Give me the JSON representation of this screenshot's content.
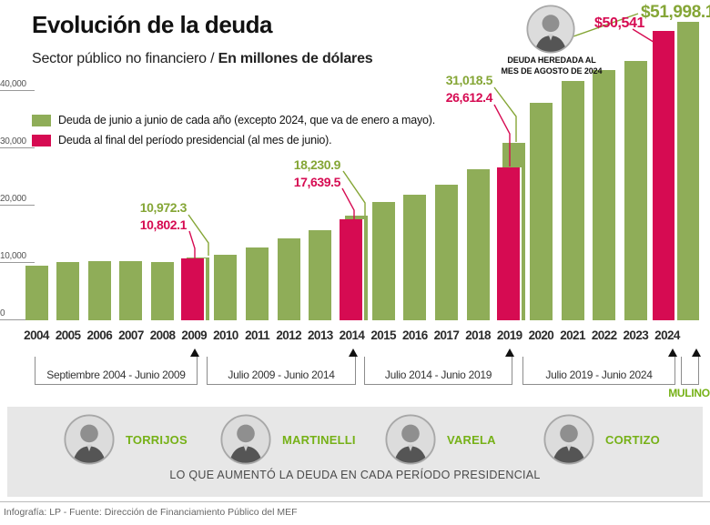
{
  "title": "Evolución de la deuda",
  "subtitle": {
    "regular": "Sector público no financiero / ",
    "bold": "En millones de dólares"
  },
  "legend": [
    {
      "color": "#8fad58",
      "label": "Deuda de junio a junio de cada año (excepto 2024, que va de enero a mayo)."
    },
    {
      "color": "#d60b52",
      "label": "Deuda al final del período presidencial (al mes de junio)."
    }
  ],
  "inherited_debt": {
    "caption_line1": "DEUDA HEREDADA AL",
    "caption_line2": "MES DE AGOSTO DE 2024"
  },
  "chart_data": {
    "type": "bar",
    "title": "Evolución de la deuda",
    "unit": "millones de dólares",
    "ylim": [
      0,
      52000
    ],
    "grid": false,
    "y_ticks": [
      {
        "value": 40000,
        "label": "40,000"
      },
      {
        "value": 30000,
        "label": "30,000"
      },
      {
        "value": 20000,
        "label": "20,000"
      },
      {
        "value": 10000,
        "label": "10,000"
      },
      {
        "value": 0,
        "label": "0"
      }
    ],
    "years": [
      "2004",
      "2005",
      "2006",
      "2007",
      "2008",
      "2009",
      "2010",
      "2011",
      "2012",
      "2013",
      "2014",
      "2015",
      "2016",
      "2017",
      "2018",
      "2019",
      "2020",
      "2021",
      "2022",
      "2023",
      "2024"
    ],
    "series": [
      {
        "name": "Deuda de junio a junio de cada año",
        "color": "#8fad58",
        "values": [
          9600,
          10100,
          10250,
          10250,
          10150,
          10972.3,
          11400,
          12750,
          14300,
          15750,
          18230.9,
          20600,
          21900,
          23700,
          26300,
          31018.5,
          38000,
          41800,
          43700,
          45300,
          51998.1
        ]
      },
      {
        "name": "Deuda al final del período presidencial",
        "color": "#d60b52",
        "values": [
          null,
          null,
          null,
          null,
          null,
          10802.1,
          null,
          null,
          null,
          null,
          17639.5,
          null,
          null,
          null,
          null,
          26612.4,
          null,
          null,
          null,
          null,
          50541
        ]
      }
    ],
    "annotations": [
      {
        "year": "2009",
        "green_label": "10,972.3",
        "red_label": "10,802.1"
      },
      {
        "year": "2014",
        "green_label": "18,230.9",
        "red_label": "17,639.5"
      },
      {
        "year": "2019",
        "green_label": "31,018.5",
        "red_label": "26,612.4"
      },
      {
        "year": "2024",
        "green_label": "$51,998.1",
        "red_label": "$50,541"
      }
    ]
  },
  "periods": [
    {
      "label": "Septiembre 2004 - Junio 2009"
    },
    {
      "label": "Julio 2009 - Junio 2014"
    },
    {
      "label": "Julio 2014 - Junio 2019"
    },
    {
      "label": "Julio 2019 - Junio 2024"
    },
    {
      "label": "MULINO"
    }
  ],
  "presidents": [
    {
      "name": "TORRIJOS"
    },
    {
      "name": "MARTINELLI"
    },
    {
      "name": "VARELA"
    },
    {
      "name": "CORTIZO"
    }
  ],
  "panel_caption": "LO QUE AUMENTÓ LA DEUDA EN CADA PERÍODO PRESIDENCIAL",
  "footer": "Infografía: LP - Fuente: Dirección de Financiamiento Público del MEF",
  "colors": {
    "green_bar": "#8fad58",
    "red_bar": "#d60b52",
    "green_text": "#85a636",
    "name_green": "#76b117",
    "panel_bg": "#e7e7e7"
  }
}
